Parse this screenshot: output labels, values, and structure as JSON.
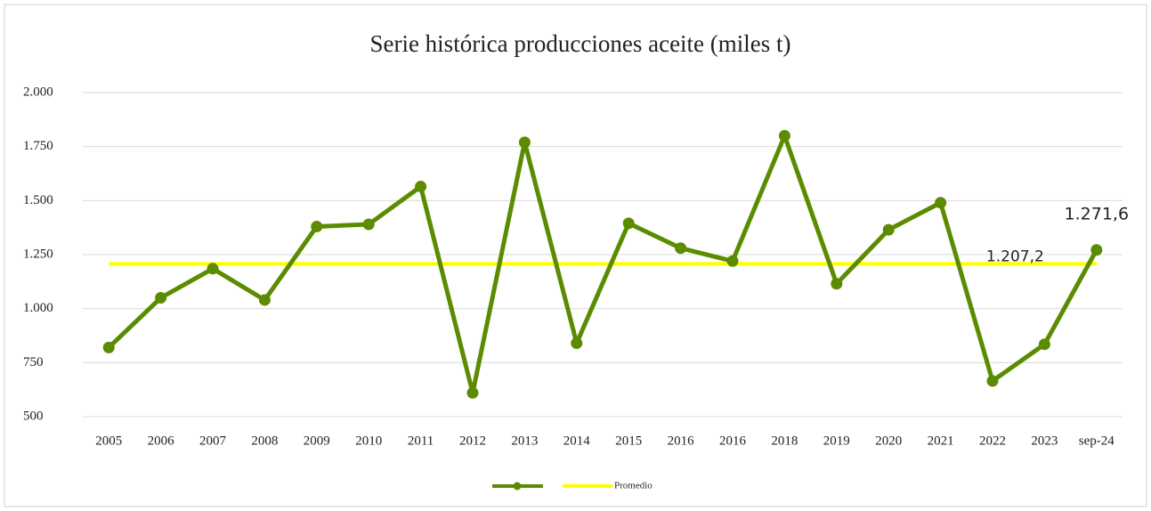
{
  "chart_data": {
    "type": "line",
    "title": "Serie histórica producciones aceite (miles t)",
    "categories": [
      "2005",
      "2006",
      "2007",
      "2008",
      "2009",
      "2010",
      "2011",
      "2012",
      "2013",
      "2014",
      "2015",
      "2016",
      "2016",
      "2018",
      "2019",
      "2020",
      "2021",
      "2022",
      "2023",
      "sep-24"
    ],
    "series": [
      {
        "color": "#5b8c00",
        "values": [
          820,
          1050,
          1185,
          1040,
          1380,
          1390,
          1565,
          610,
          1770,
          840,
          1395,
          1280,
          1220,
          1800,
          1115,
          1365,
          1490,
          665,
          835,
          1271.6
        ],
        "value_labels": [
          null,
          null,
          null,
          null,
          null,
          null,
          null,
          null,
          null,
          null,
          null,
          null,
          null,
          null,
          null,
          null,
          null,
          null,
          null,
          "1.271,6"
        ]
      },
      {
        "name": "Promedio",
        "color": "#ffff00",
        "values": [
          1207.2,
          1207.2,
          1207.2,
          1207.2,
          1207.2,
          1207.2,
          1207.2,
          1207.2,
          1207.2,
          1207.2,
          1207.2,
          1207.2,
          1207.2,
          1207.2,
          1207.2,
          1207.2,
          1207.2,
          1207.2,
          1207.2,
          1207.2
        ],
        "value_labels": [
          null,
          null,
          null,
          null,
          null,
          null,
          null,
          null,
          null,
          null,
          null,
          null,
          null,
          null,
          null,
          null,
          null,
          null,
          null,
          "1.207,2"
        ]
      }
    ],
    "ylim": [
      500,
      2000
    ],
    "yticks": [
      500,
      750,
      {
        "value": 1000,
        "label": "1.000"
      },
      {
        "value": 1250,
        "label": "1.250"
      },
      {
        "value": 1500,
        "label": "1.500"
      },
      {
        "value": 1750,
        "label": "1.750"
      },
      {
        "value": 2000,
        "label": "2.000"
      }
    ],
    "grid": true,
    "legend": "bottom"
  }
}
